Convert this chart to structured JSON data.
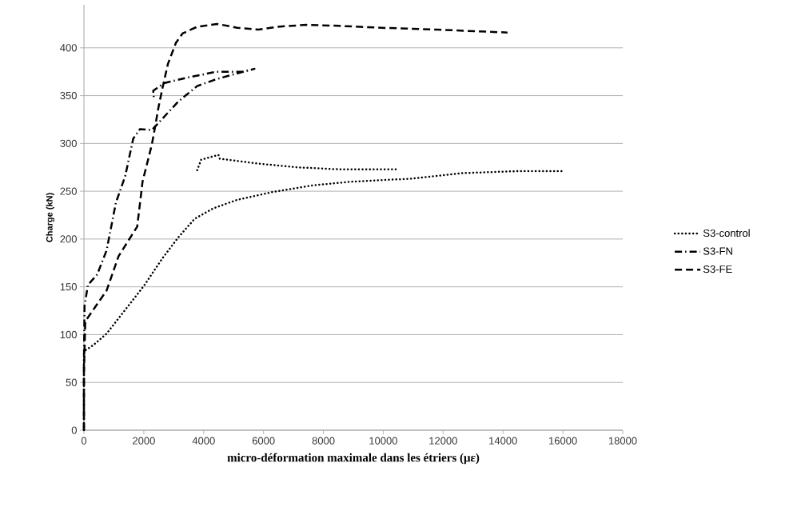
{
  "chart_data": {
    "type": "line",
    "xlabel": "micro-déformation maximale dans les étriers (με)",
    "ylabel": "Charge (kN)",
    "xlim": [
      0,
      18000
    ],
    "xticks": [
      0,
      2000,
      4000,
      6000,
      8000,
      10000,
      12000,
      14000,
      16000,
      18000
    ],
    "ylim": [
      0,
      445
    ],
    "yticks": [
      0,
      50,
      100,
      150,
      200,
      250,
      300,
      350,
      400
    ],
    "grid": "y",
    "legend": "right",
    "series": [
      {
        "name": "S3-control",
        "color": "#000000",
        "line_style": "dotted",
        "x": [
          0,
          0,
          20,
          312,
          756,
          1380,
          2003,
          2625,
          3159,
          3693,
          4317,
          5117,
          6274,
          7609,
          8944,
          10190,
          10903,
          12683,
          14463,
          15976,
          null,
          3783,
          3916,
          4494,
          4539,
          5785,
          7120,
          8455,
          10146,
          10501
        ],
        "values": [
          0,
          75,
          83,
          89,
          101,
          126,
          151,
          180,
          202,
          221,
          232,
          241,
          249,
          256,
          260,
          262,
          263,
          269,
          271,
          271,
          null,
          272,
          283,
          288,
          284,
          279,
          275,
          273,
          273,
          273
        ]
      },
      {
        "name": "S3-FN",
        "color": "#000000",
        "line_style": "dashdot",
        "x": [
          0,
          0,
          20,
          133,
          445,
          756,
          1068,
          1380,
          1647,
          1869,
          2270,
          2625,
          3159,
          3783,
          4406,
          4851,
          5696,
          5295,
          4406,
          3961,
          3471,
          2937,
          2670,
          2492,
          2314,
          2340
        ],
        "values": [
          0,
          70,
          130,
          152,
          163,
          188,
          238,
          266,
          305,
          315,
          314,
          326,
          344,
          360,
          367,
          371,
          378,
          375,
          375,
          372,
          369,
          365,
          363,
          359,
          355,
          346
        ]
      },
      {
        "name": "S3-FE",
        "color": "#000000",
        "line_style": "dashed",
        "x": [
          0,
          0,
          45,
          756,
          1157,
          1780,
          1958,
          2270,
          2358,
          2492,
          2625,
          2804,
          3070,
          3293,
          3783,
          4450,
          5117,
          5830,
          6452,
          7431,
          8499,
          9923,
          11793,
          14151
        ],
        "values": [
          0,
          60,
          114,
          146,
          182,
          213,
          260,
          299,
          314,
          338,
          358,
          383,
          405,
          415,
          422,
          425,
          421,
          419,
          422,
          424,
          423,
          421,
          419,
          416
        ]
      }
    ]
  }
}
